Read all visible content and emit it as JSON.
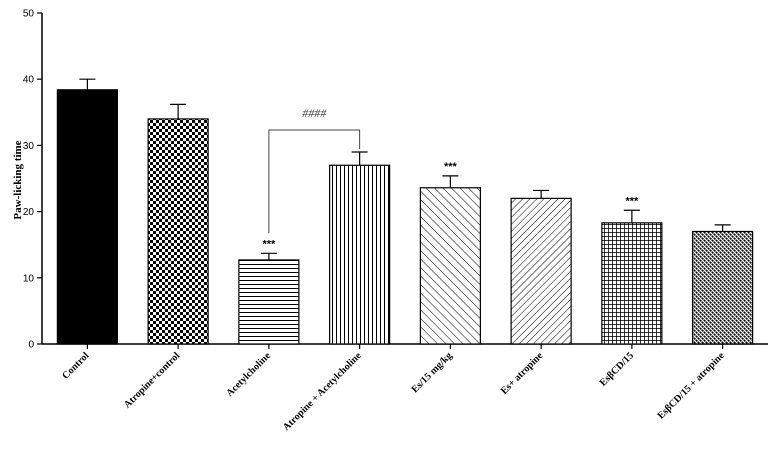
{
  "chart_data": {
    "type": "bar",
    "title": "",
    "xlabel": "",
    "ylabel": "Paw-licking time",
    "ylim": [
      0,
      50
    ],
    "yticks": [
      "0",
      "10",
      "20",
      "30",
      "40",
      "50"
    ],
    "grid": false,
    "categories": [
      "Control",
      "Atropine+control",
      "Acetylcholine",
      "Atropine + Acetylcholine",
      "Es/15 mg/kg",
      "Es+ atropine",
      "EsβCD/15",
      "EsβCD/15 + atropine"
    ],
    "values": [
      38.4,
      34.0,
      12.7,
      27.0,
      23.6,
      22.0,
      18.3,
      17.0
    ],
    "errors": [
      1.6,
      2.2,
      1.0,
      2.0,
      1.8,
      1.2,
      1.9,
      1.0
    ],
    "fills": [
      "solid",
      "checker",
      "hlines",
      "vlines",
      "diag-up",
      "diag-down",
      "grid",
      "dots"
    ],
    "significance": [
      {
        "category": "Acetylcholine",
        "label": "***"
      },
      {
        "category": "Es/15 mg/kg",
        "label": "***"
      },
      {
        "category": "EsβCD/15",
        "label": "***"
      }
    ],
    "bracket": {
      "from": "Acetylcholine",
      "to": "Atropine + Acetylcholine",
      "label": "####"
    }
  }
}
